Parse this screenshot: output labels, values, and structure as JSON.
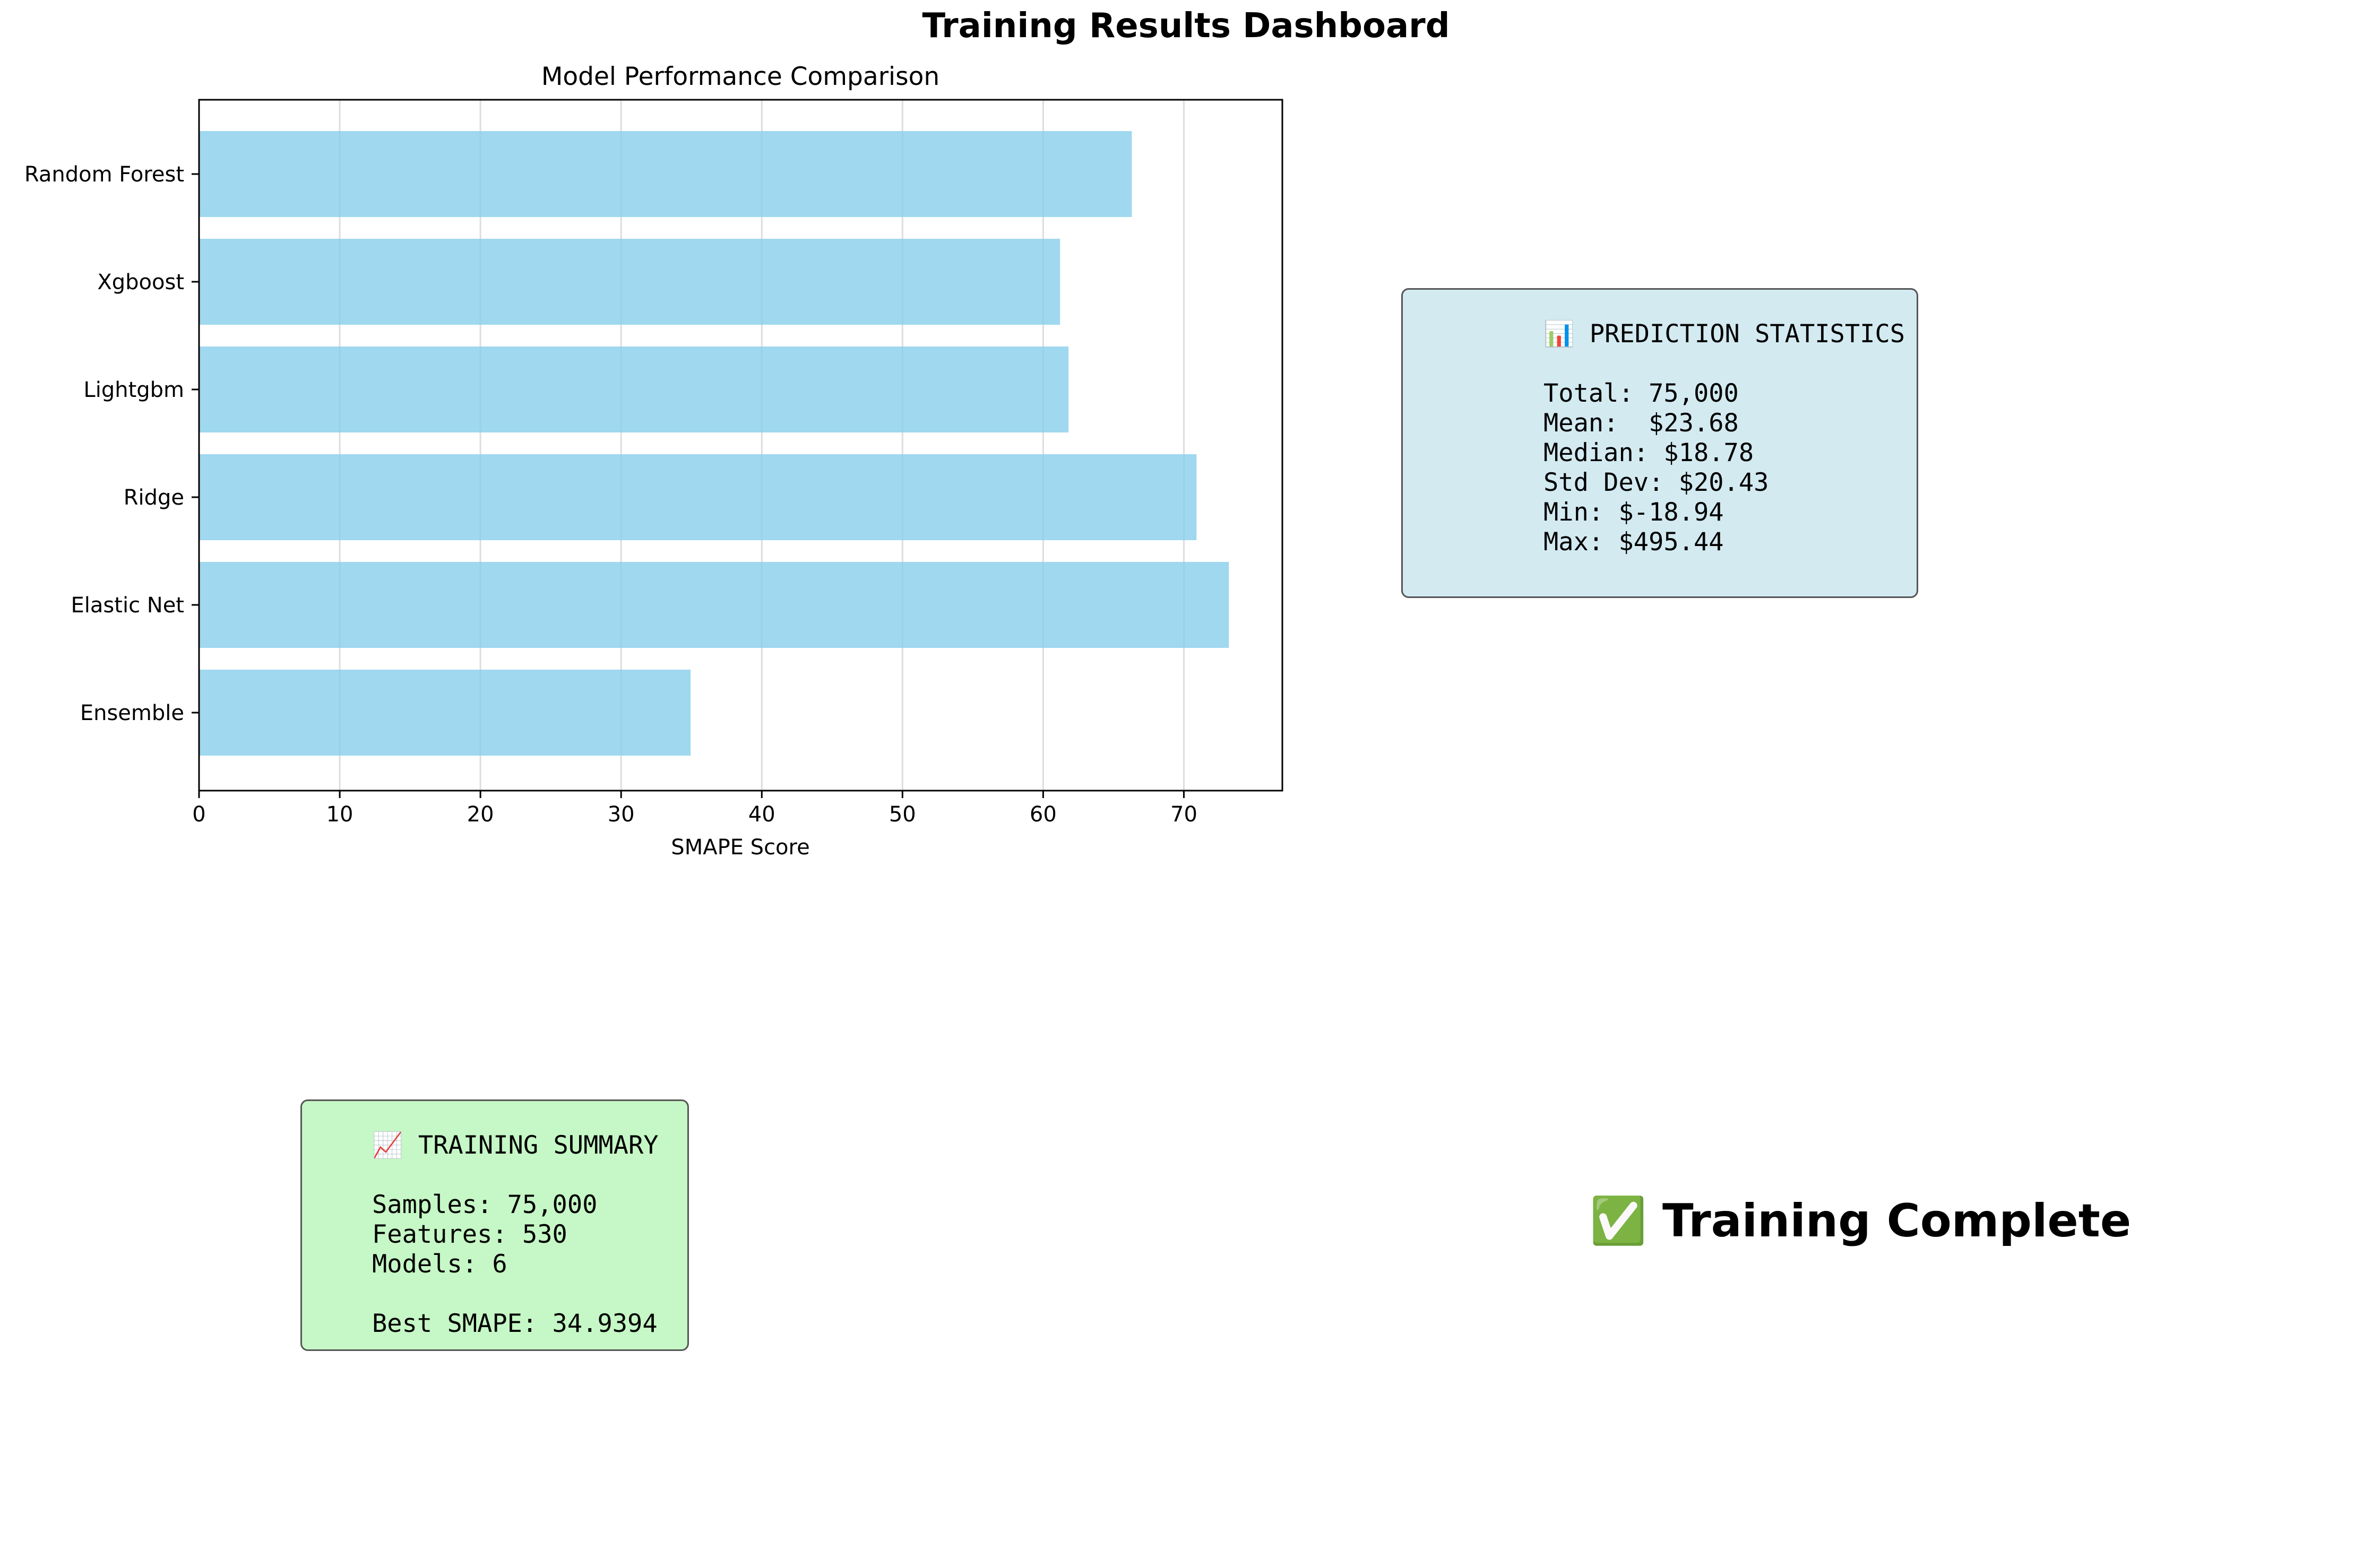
{
  "page_title": "Training Results Dashboard",
  "colors": {
    "bar": "#87ceeb",
    "pred_box_bg": "#d3eaf1",
    "train_box_bg": "#c6f7c6"
  },
  "chart_data": {
    "type": "bar",
    "orientation": "horizontal",
    "title": "Model Performance Comparison",
    "xlabel": "SMAPE Score",
    "ylabel": "",
    "categories": [
      "Random Forest",
      "Xgboost",
      "Lightgbm",
      "Ridge",
      "Elastic Net",
      "Ensemble"
    ],
    "values": [
      66.3,
      61.2,
      61.8,
      70.9,
      73.2,
      34.9394
    ],
    "xlim": [
      0,
      77
    ],
    "xticks": [
      "0",
      "10",
      "20",
      "30",
      "40",
      "50",
      "60",
      "70"
    ],
    "grid": "vertical",
    "legend": "none"
  },
  "prediction_stats": {
    "heading": "📊 PREDICTION STATISTICS",
    "lines": [
      "Total: 75,000",
      "Mean:  $23.68",
      "Median: $18.78",
      "Std Dev: $20.43",
      "Min: $-18.94",
      "Max: $495.44"
    ]
  },
  "training_summary": {
    "heading": "📈 TRAINING SUMMARY",
    "lines": [
      "Samples: 75,000",
      "Features: 530",
      "Models: 6",
      "",
      "Best SMAPE: 34.9394"
    ]
  },
  "status": "✅ Training Complete"
}
